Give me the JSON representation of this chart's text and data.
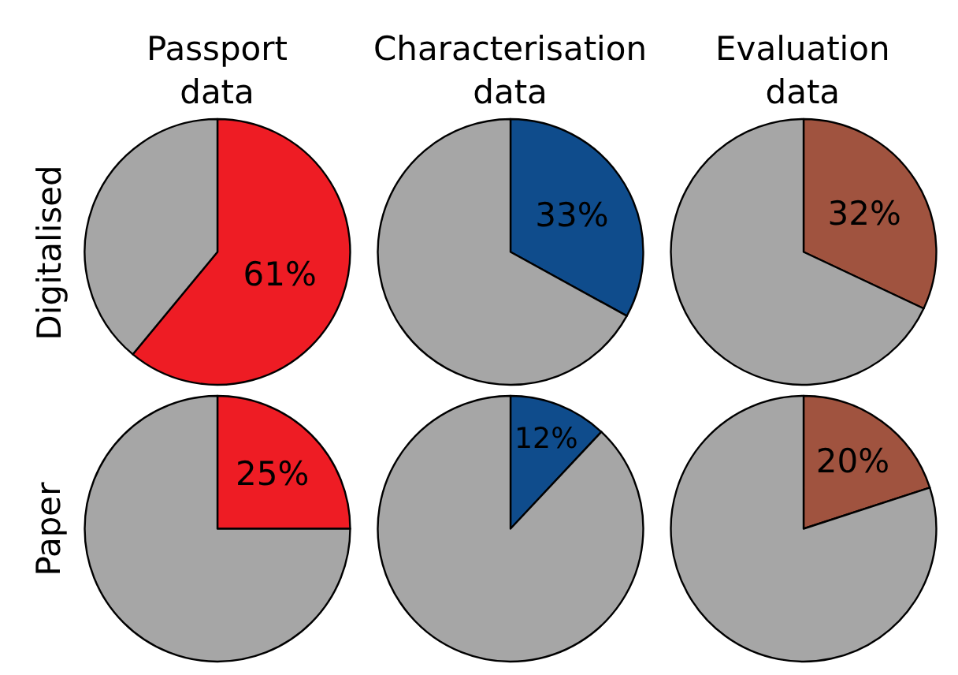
{
  "chart_data": [
    {
      "type": "pie",
      "title": "Passport data",
      "ylabel": "Digitalised",
      "categories": [
        null,
        null
      ],
      "values": [
        61,
        39
      ],
      "colors": [
        "#ee1c24",
        "#a6a6a6"
      ],
      "value_labels": [
        "61%",
        null
      ]
    },
    {
      "type": "pie",
      "title": "Characterisation data",
      "categories": [
        null,
        null
      ],
      "values": [
        33,
        67
      ],
      "colors": [
        "#0f4c8c",
        "#a6a6a6"
      ],
      "value_labels": [
        "33%",
        null
      ]
    },
    {
      "type": "pie",
      "title": "Evaluation data",
      "categories": [
        null,
        null
      ],
      "values": [
        32,
        68
      ],
      "colors": [
        "#a0533f",
        "#a6a6a6"
      ],
      "value_labels": [
        "32%",
        null
      ]
    },
    {
      "type": "pie",
      "ylabel": "Paper",
      "categories": [
        null,
        null
      ],
      "values": [
        25,
        75
      ],
      "colors": [
        "#ee1c24",
        "#a6a6a6"
      ],
      "value_labels": [
        "25%",
        null
      ]
    },
    {
      "type": "pie",
      "categories": [
        null,
        null
      ],
      "values": [
        12,
        88
      ],
      "colors": [
        "#0f4c8c",
        "#a6a6a6"
      ],
      "value_labels": [
        "12%",
        null
      ]
    },
    {
      "type": "pie",
      "categories": [
        null,
        null
      ],
      "values": [
        20,
        80
      ],
      "colors": [
        "#a0533f",
        "#a6a6a6"
      ],
      "value_labels": [
        "20%",
        null
      ]
    }
  ]
}
